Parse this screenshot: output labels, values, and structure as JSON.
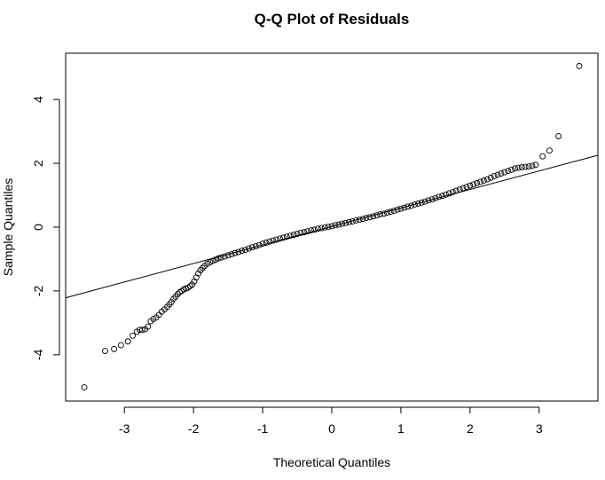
{
  "chart_data": {
    "type": "scatter",
    "title": "Q-Q Plot of Residuals",
    "xlabel": "Theoretical Quantiles",
    "ylabel": "Sample Quantiles",
    "xlim": [
      -3.85,
      3.85
    ],
    "ylim": [
      -5.45,
      5.45
    ],
    "xticks": [
      -3,
      -2,
      -1,
      0,
      1,
      2,
      3
    ],
    "yticks": [
      -4,
      -2,
      0,
      2,
      4
    ],
    "grid": false,
    "legend": "none",
    "reference_line": {
      "intercept": 0.02,
      "slope": 0.58
    },
    "series": [
      {
        "marker": "open-circle",
        "x": [
          -3.58,
          -3.28,
          -3.15,
          -3.05,
          -2.95,
          -2.88,
          -2.82,
          -2.78,
          -2.74,
          -2.7,
          -2.66,
          -2.62,
          -2.58,
          -2.54,
          -2.5,
          -2.46,
          -2.42,
          -2.38,
          -2.35,
          -2.32,
          -2.29,
          -2.26,
          -2.23,
          -2.2,
          -2.17,
          -2.14,
          -2.11,
          -2.08,
          -2.05,
          -2.02,
          -1.99,
          -1.96,
          -1.93,
          -1.9,
          -1.87,
          -1.84,
          -1.8,
          -1.76,
          -1.72,
          -1.68,
          -1.64,
          -1.6,
          -1.55,
          -1.5,
          -1.45,
          -1.4,
          -1.35,
          -1.3,
          -1.25,
          -1.2,
          -1.15,
          -1.1,
          -1.05,
          -1.0,
          -0.95,
          -0.9,
          -0.85,
          -0.8,
          -0.75,
          -0.7,
          -0.65,
          -0.6,
          -0.55,
          -0.5,
          -0.45,
          -0.4,
          -0.35,
          -0.3,
          -0.25,
          -0.2,
          -0.15,
          -0.1,
          -0.05,
          0.0,
          0.05,
          0.1,
          0.15,
          0.2,
          0.25,
          0.3,
          0.35,
          0.4,
          0.45,
          0.5,
          0.55,
          0.6,
          0.65,
          0.7,
          0.75,
          0.8,
          0.85,
          0.9,
          0.95,
          1.0,
          1.05,
          1.1,
          1.15,
          1.2,
          1.25,
          1.3,
          1.35,
          1.4,
          1.45,
          1.5,
          1.55,
          1.6,
          1.65,
          1.7,
          1.75,
          1.8,
          1.85,
          1.9,
          1.95,
          2.0,
          2.05,
          2.1,
          2.15,
          2.2,
          2.25,
          2.3,
          2.35,
          2.4,
          2.45,
          2.5,
          2.55,
          2.6,
          2.65,
          2.7,
          2.75,
          2.8,
          2.85,
          2.9,
          2.95,
          3.05,
          3.15,
          3.28,
          3.58
        ],
        "y": [
          -5.02,
          -3.88,
          -3.82,
          -3.7,
          -3.58,
          -3.4,
          -3.28,
          -3.22,
          -3.22,
          -3.2,
          -3.12,
          -2.95,
          -2.88,
          -2.83,
          -2.75,
          -2.65,
          -2.58,
          -2.5,
          -2.42,
          -2.35,
          -2.25,
          -2.18,
          -2.1,
          -2.04,
          -2.0,
          -1.95,
          -1.92,
          -1.9,
          -1.85,
          -1.8,
          -1.7,
          -1.58,
          -1.45,
          -1.35,
          -1.28,
          -1.22,
          -1.15,
          -1.1,
          -1.06,
          -1.02,
          -0.98,
          -0.95,
          -0.92,
          -0.88,
          -0.85,
          -0.81,
          -0.78,
          -0.74,
          -0.71,
          -0.67,
          -0.63,
          -0.6,
          -0.56,
          -0.52,
          -0.49,
          -0.45,
          -0.42,
          -0.39,
          -0.36,
          -0.33,
          -0.3,
          -0.27,
          -0.24,
          -0.21,
          -0.18,
          -0.16,
          -0.13,
          -0.1,
          -0.08,
          -0.05,
          -0.03,
          -0.01,
          0.01,
          0.03,
          0.06,
          0.08,
          0.11,
          0.13,
          0.16,
          0.18,
          0.21,
          0.23,
          0.26,
          0.29,
          0.31,
          0.34,
          0.37,
          0.4,
          0.42,
          0.45,
          0.48,
          0.51,
          0.55,
          0.58,
          0.61,
          0.64,
          0.67,
          0.71,
          0.74,
          0.77,
          0.8,
          0.84,
          0.87,
          0.91,
          0.95,
          0.98,
          1.02,
          1.06,
          1.1,
          1.14,
          1.18,
          1.22,
          1.26,
          1.3,
          1.34,
          1.38,
          1.42,
          1.46,
          1.5,
          1.55,
          1.6,
          1.64,
          1.68,
          1.72,
          1.76,
          1.8,
          1.84,
          1.86,
          1.88,
          1.89,
          1.9,
          1.92,
          1.95,
          2.22,
          2.4,
          2.85,
          5.05
        ]
      }
    ]
  }
}
